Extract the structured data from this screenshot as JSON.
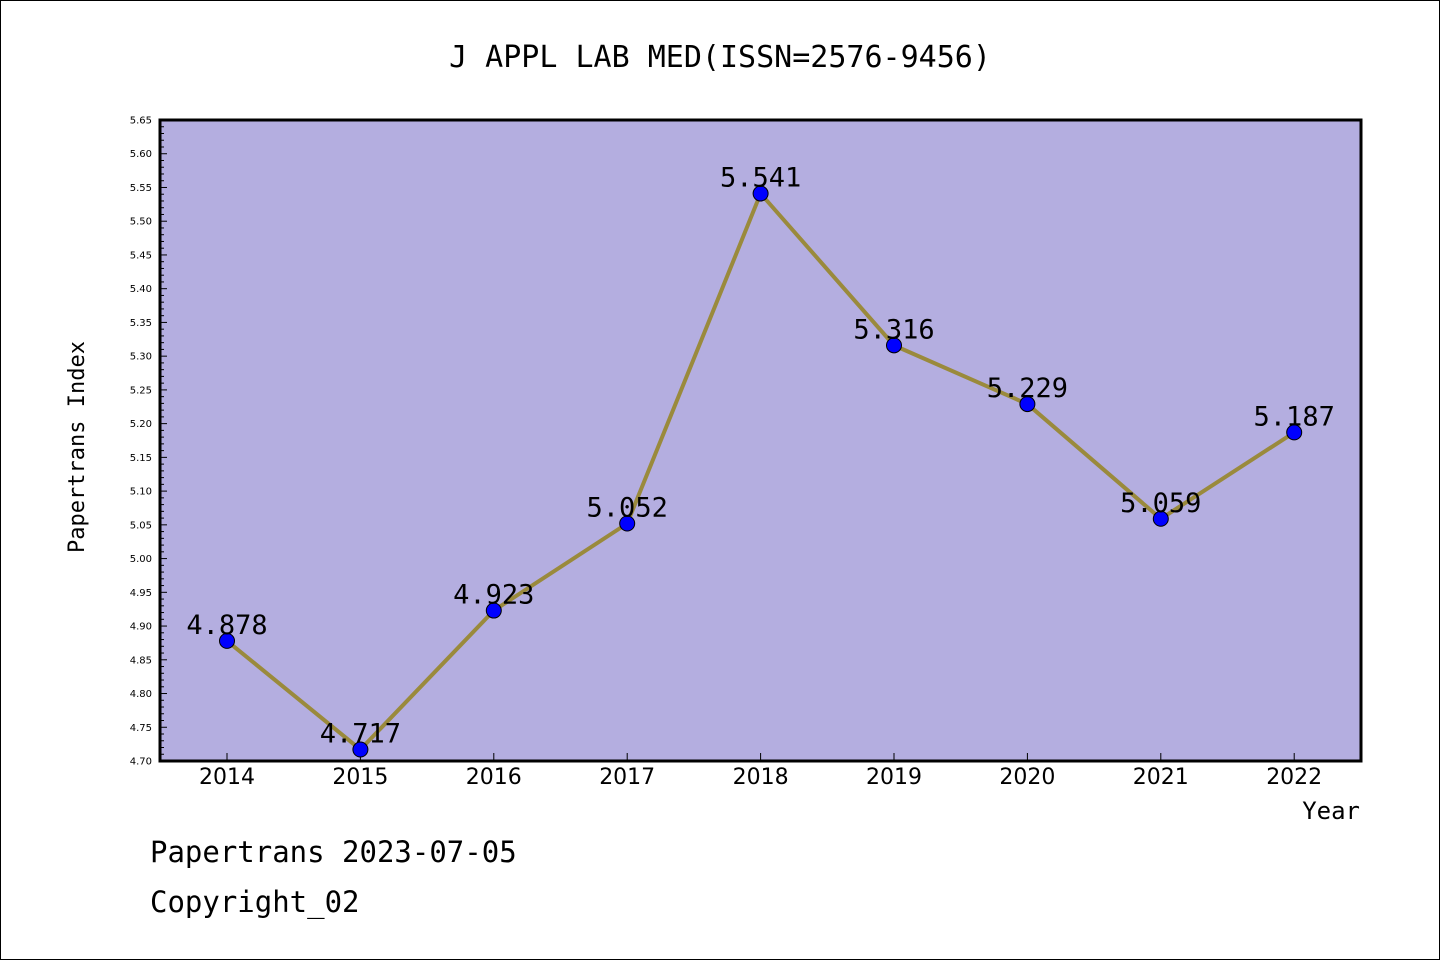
{
  "chart_data": {
    "type": "line",
    "title": "J APPL LAB MED(ISSN=2576-9456)",
    "xlabel": "Year",
    "ylabel": "Papertrans Index",
    "categories": [
      "2014",
      "2015",
      "2016",
      "2017",
      "2018",
      "2019",
      "2020",
      "2021",
      "2022"
    ],
    "values": [
      4.878,
      4.717,
      4.923,
      5.052,
      5.541,
      5.316,
      5.229,
      5.059,
      5.187
    ],
    "data_labels": [
      "4.878",
      "4.717",
      "4.923",
      "5.052",
      "5.541",
      "5.316",
      "5.229",
      "5.059",
      "5.187"
    ],
    "ylim": [
      4.7,
      5.65
    ],
    "y_ticks": [
      "4.70",
      "4.75",
      "4.80",
      "4.85",
      "4.90",
      "4.95",
      "5.00",
      "5.05",
      "5.10",
      "5.15",
      "5.20",
      "5.25",
      "5.30",
      "5.35",
      "5.40",
      "5.45",
      "5.50",
      "5.55",
      "5.60",
      "5.65"
    ],
    "grid": false,
    "legend": "none",
    "colors": {
      "plot_background": "#b4aee0",
      "line": "#9a8a3c",
      "marker": "#0000ff"
    }
  },
  "footer": {
    "line1": "Papertrans 2023-07-05",
    "line2": "Copyright_02"
  }
}
